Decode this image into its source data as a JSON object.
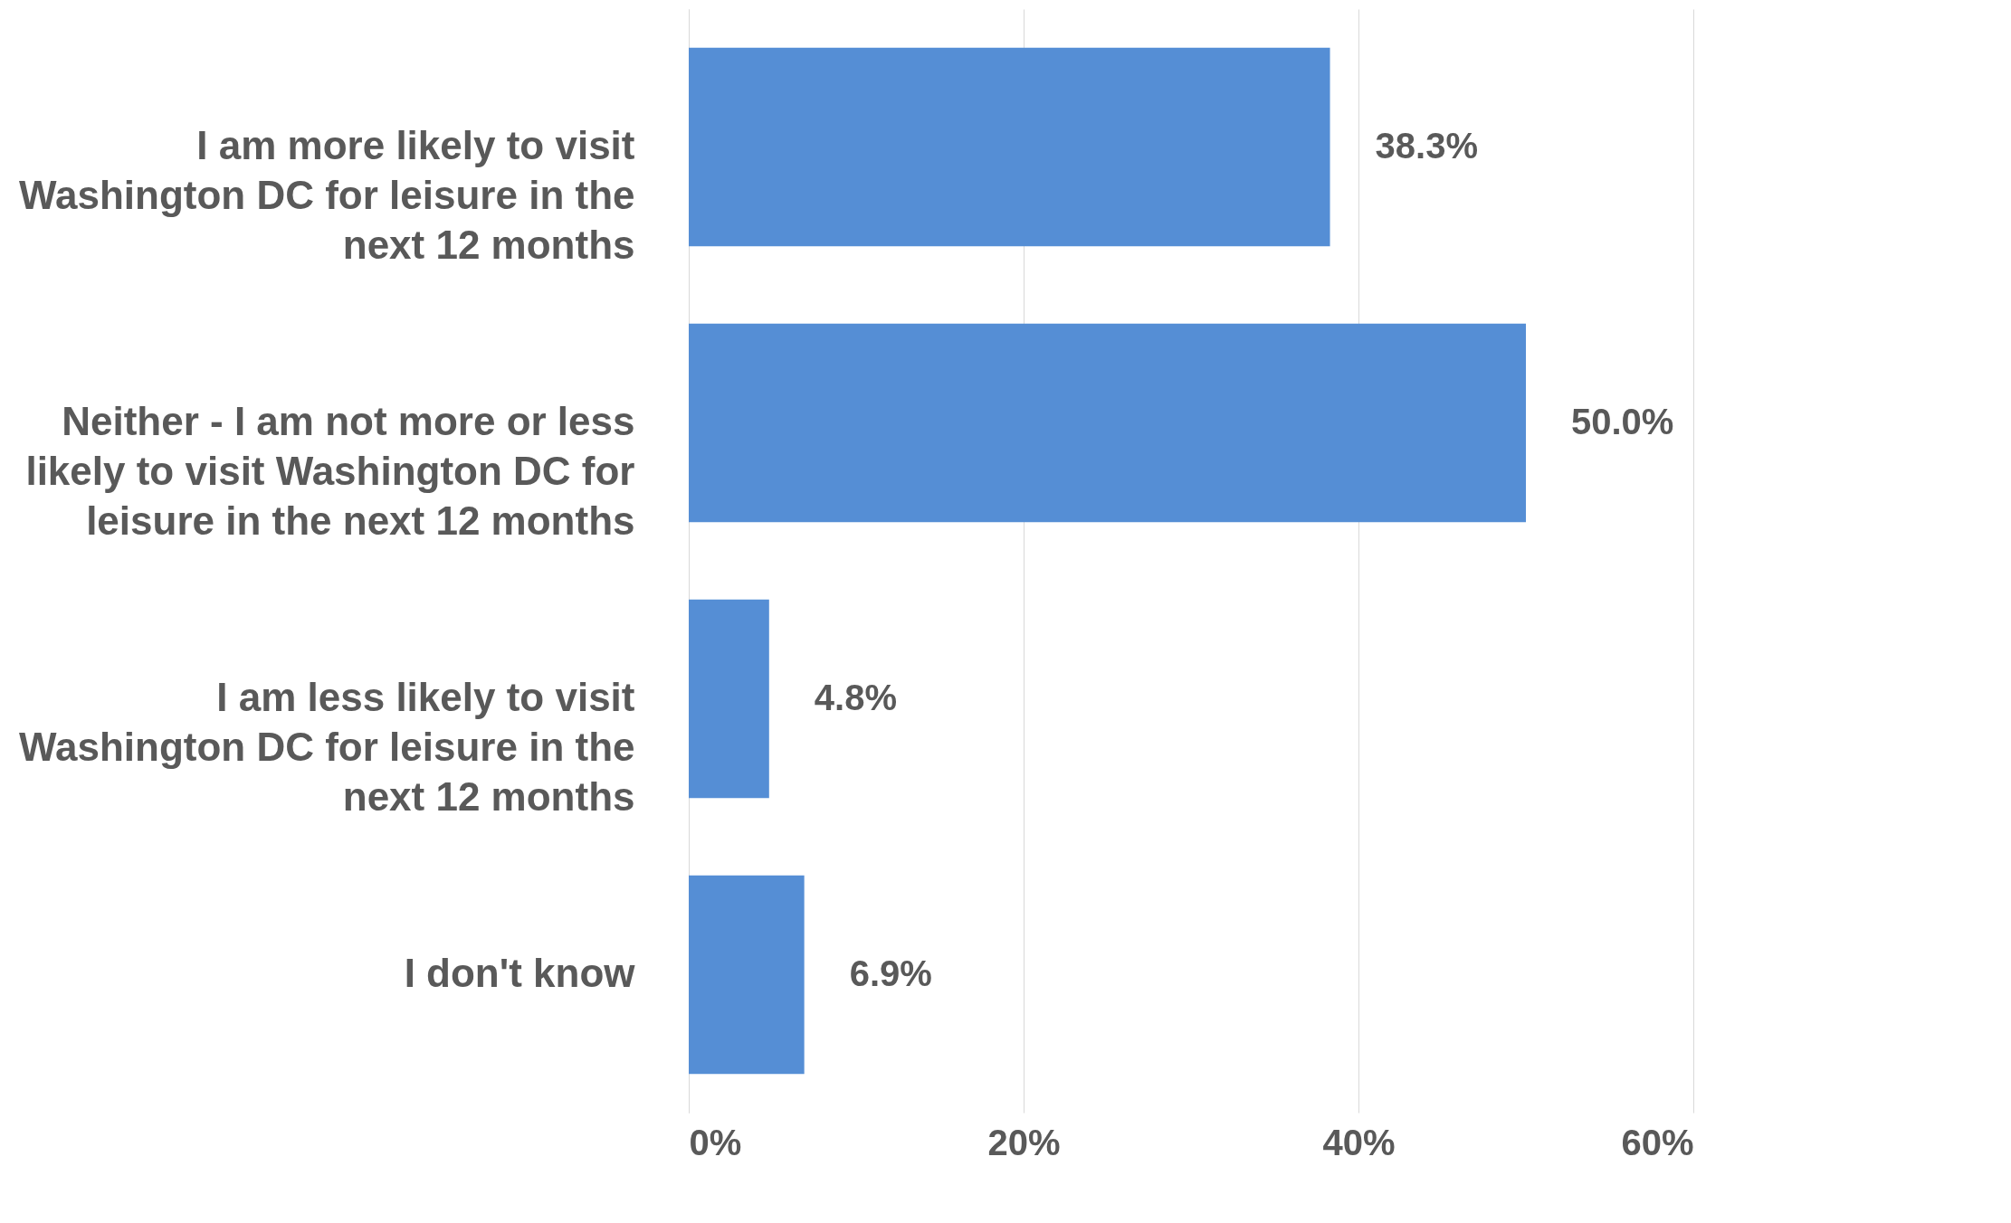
{
  "chart_data": {
    "type": "bar",
    "orientation": "horizontal",
    "categories": [
      "I am more likely to visit Washington DC for leisure in the next 12 months",
      "Neither - I am not more or less likely to visit Washington DC for leisure in the next 12 months",
      "I am less likely to visit  Washington DC for leisure in the  next 12 months",
      "I don't know"
    ],
    "values": [
      38.3,
      50.0,
      4.8,
      6.9
    ],
    "value_labels": [
      "38.3%",
      "50.0%",
      "4.8%",
      "6.9%"
    ],
    "color": "#558ed5",
    "xlim": [
      0,
      60
    ],
    "xticks": [
      {
        "value": 0,
        "label": "0%"
      },
      {
        "value": 20,
        "label": "20%"
      },
      {
        "value": 40,
        "label": "40%"
      },
      {
        "value": 60,
        "label": "60%"
      }
    ],
    "grid": "x"
  }
}
